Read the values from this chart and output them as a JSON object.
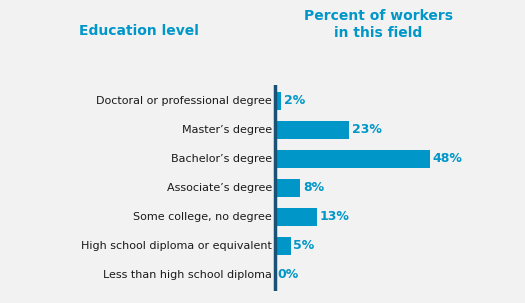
{
  "categories": [
    "Doctoral or professional degree",
    "Master’s degree",
    "Bachelor’s degree",
    "Associate’s degree",
    "Some college, no degree",
    "High school diploma or equivalent",
    "Less than high school diploma"
  ],
  "values": [
    2,
    23,
    48,
    8,
    13,
    5,
    0
  ],
  "bar_color": "#0097c8",
  "divider_color": "#1a5276",
  "label_color": "#0097c8",
  "header_color": "#0097c8",
  "category_color": "#1a1a1a",
  "background_color": "#f2f2f2",
  "left_header": "Education level",
  "right_header": "Percent of workers\nin this field",
  "bar_height": 0.62,
  "figsize": [
    5.25,
    3.03
  ],
  "dpi": 100
}
